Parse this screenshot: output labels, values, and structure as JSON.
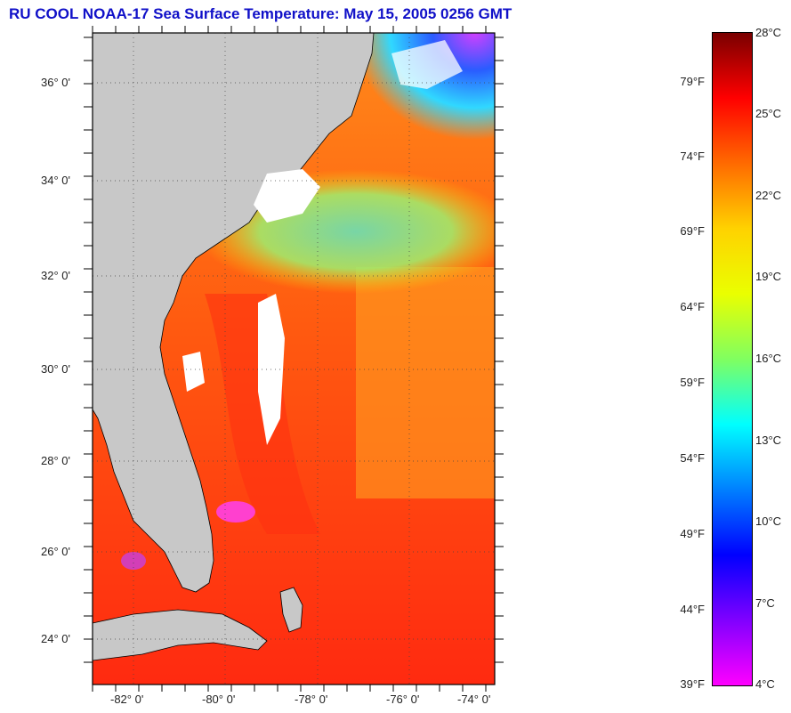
{
  "title": "RU COOL  NOAA-17  Sea Surface Temperature:  May 15, 2005 0256 GMT",
  "map": {
    "lat_labels": [
      "36° 0'",
      "34° 0'",
      "32° 0'",
      "30° 0'",
      "28° 0'",
      "26° 0'",
      "24° 0'"
    ],
    "lon_labels": [
      "-82° 0'",
      "-80° 0'",
      "-78° 0'",
      "-76° 0'",
      "-74° 0'"
    ],
    "colors": {
      "land": "#c8c8c8",
      "cloud": "#ffffff",
      "frame": "#000000",
      "grid": "#444444"
    }
  },
  "colorbar": {
    "fahrenheit_labels": [
      "79°F",
      "74°F",
      "69°F",
      "64°F",
      "59°F",
      "54°F",
      "49°F",
      "44°F",
      "39°F"
    ],
    "celsius_labels": [
      "28°C",
      "25°C",
      "22°C",
      "19°C",
      "16°C",
      "13°C",
      "10°C",
      "7°C",
      "4°C"
    ],
    "range_celsius": [
      4,
      28
    ],
    "gradient_colors": [
      "#7a0000",
      "#ff0000",
      "#ff6a00",
      "#ffd200",
      "#eaff00",
      "#80ff60",
      "#00ffff",
      "#0080ff",
      "#0000ff",
      "#8000ff",
      "#ff00ff"
    ]
  }
}
